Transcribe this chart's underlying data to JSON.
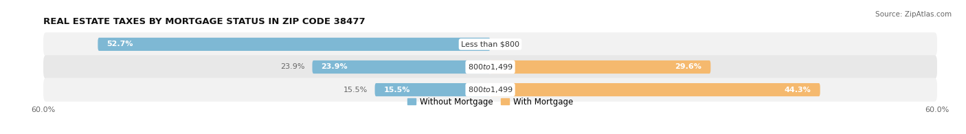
{
  "title": "REAL ESTATE TAXES BY MORTGAGE STATUS IN ZIP CODE 38477",
  "source": "Source: ZipAtlas.com",
  "rows": [
    {
      "label": "Less than $800",
      "without_mortgage": 52.7,
      "with_mortgage": 0.0
    },
    {
      "label": "$800 to $1,499",
      "without_mortgage": 23.9,
      "with_mortgage": 29.6
    },
    {
      "label": "$800 to $1,499",
      "without_mortgage": 15.5,
      "with_mortgage": 44.3
    }
  ],
  "xlim": 60.0,
  "color_without": "#7eb8d4",
  "color_with": "#f5b96e",
  "row_bg_colors": [
    "#f2f2f2",
    "#e8e8e8",
    "#f2f2f2"
  ],
  "bar_height": 0.58,
  "title_fontsize": 9.5,
  "pct_fontsize": 8.0,
  "label_fontsize": 8.0,
  "source_fontsize": 7.5,
  "legend_fontsize": 8.5,
  "axis_label_fontsize": 8.0
}
